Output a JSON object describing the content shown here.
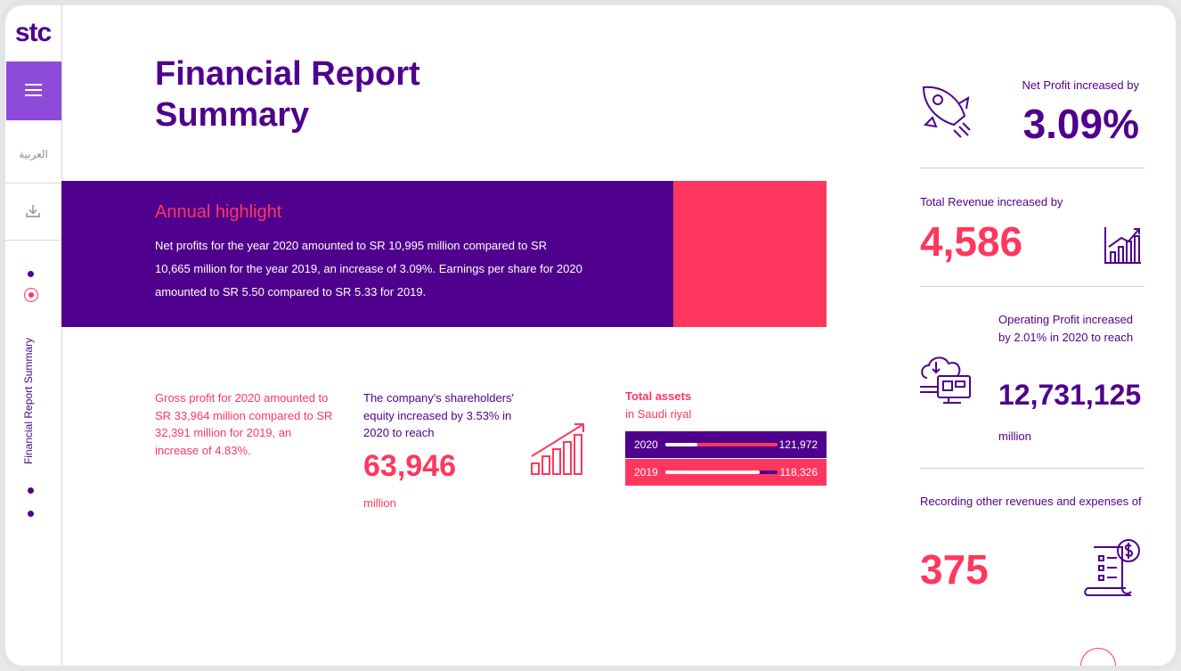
{
  "brand": {
    "logo": "stc"
  },
  "sidebar": {
    "language": "العربية",
    "section_label": "Financial Report Summary"
  },
  "page": {
    "title_line1": "Financial Report",
    "title_line2": "Summary"
  },
  "highlight": {
    "heading": "Annual highlight",
    "body": "Net profits for the year 2020 amounted to SR 10,995 million compared to SR 10,665 million for the year 2019, an increase of 3.09%. Earnings per share for 2020 amounted to SR 5.50 compared to SR 5.33 for 2019."
  },
  "gross_profit": {
    "text": "Gross profit for 2020 amounted to SR 33,964 million compared to SR 32,391 million for 2019, an increase of 4.83%."
  },
  "equity": {
    "text": "The company's shareholders' equity increased by 3.53% in 2020 to reach",
    "value": "63,946",
    "unit": "million",
    "icon": "bar-chart-up-icon"
  },
  "total_assets": {
    "title": "Total assets",
    "subtitle": "in Saudi riyal",
    "rows": [
      {
        "year": "2020",
        "value": "121,972",
        "level": 1.0
      },
      {
        "year": "2019",
        "value": "118,326",
        "level": 0.84
      }
    ]
  },
  "stats": {
    "net_profit": {
      "label": "Net Profit increased by",
      "value": "3.09%",
      "icon": "rocket-icon"
    },
    "total_revenue": {
      "label": "Total Revenue increased by",
      "value": "4,586",
      "icon": "bar-chart-icon"
    },
    "operating_profit": {
      "label": "Operating Profit increased by 2.01% in 2020 to reach",
      "value": "12,731,125",
      "unit": "million",
      "icon": "cloud-computer-icon"
    },
    "other_revenues": {
      "label": "Recording other revenues and expenses of",
      "value": "375",
      "icon": "invoice-icon"
    }
  },
  "colors": {
    "purple": "#4f008c",
    "pink": "#ff375e",
    "violet": "#8e4bd9"
  }
}
